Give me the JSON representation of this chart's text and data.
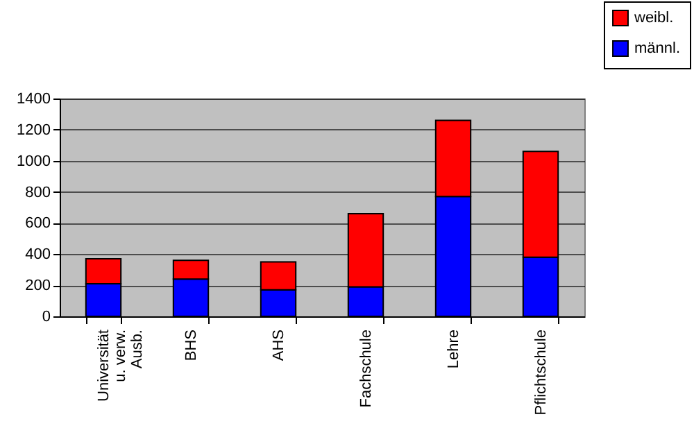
{
  "chart_data": {
    "type": "bar",
    "stacked": true,
    "categories": [
      "Universität u. verw. Ausb.",
      "BHS",
      "AHS",
      "Fachschule",
      "Lehre",
      "Pflichtschule"
    ],
    "series": [
      {
        "name": "männl.",
        "color": "#0000ff",
        "values": [
          210,
          240,
          170,
          190,
          770,
          380
        ]
      },
      {
        "name": "weibl.",
        "color": "#ff0000",
        "values": [
          160,
          120,
          180,
          470,
          490,
          680
        ]
      }
    ],
    "ylim": [
      0,
      1400
    ],
    "yticks": [
      0,
      200,
      400,
      600,
      800,
      1000,
      1200,
      1400
    ],
    "grid": "y",
    "legend": "top right"
  }
}
